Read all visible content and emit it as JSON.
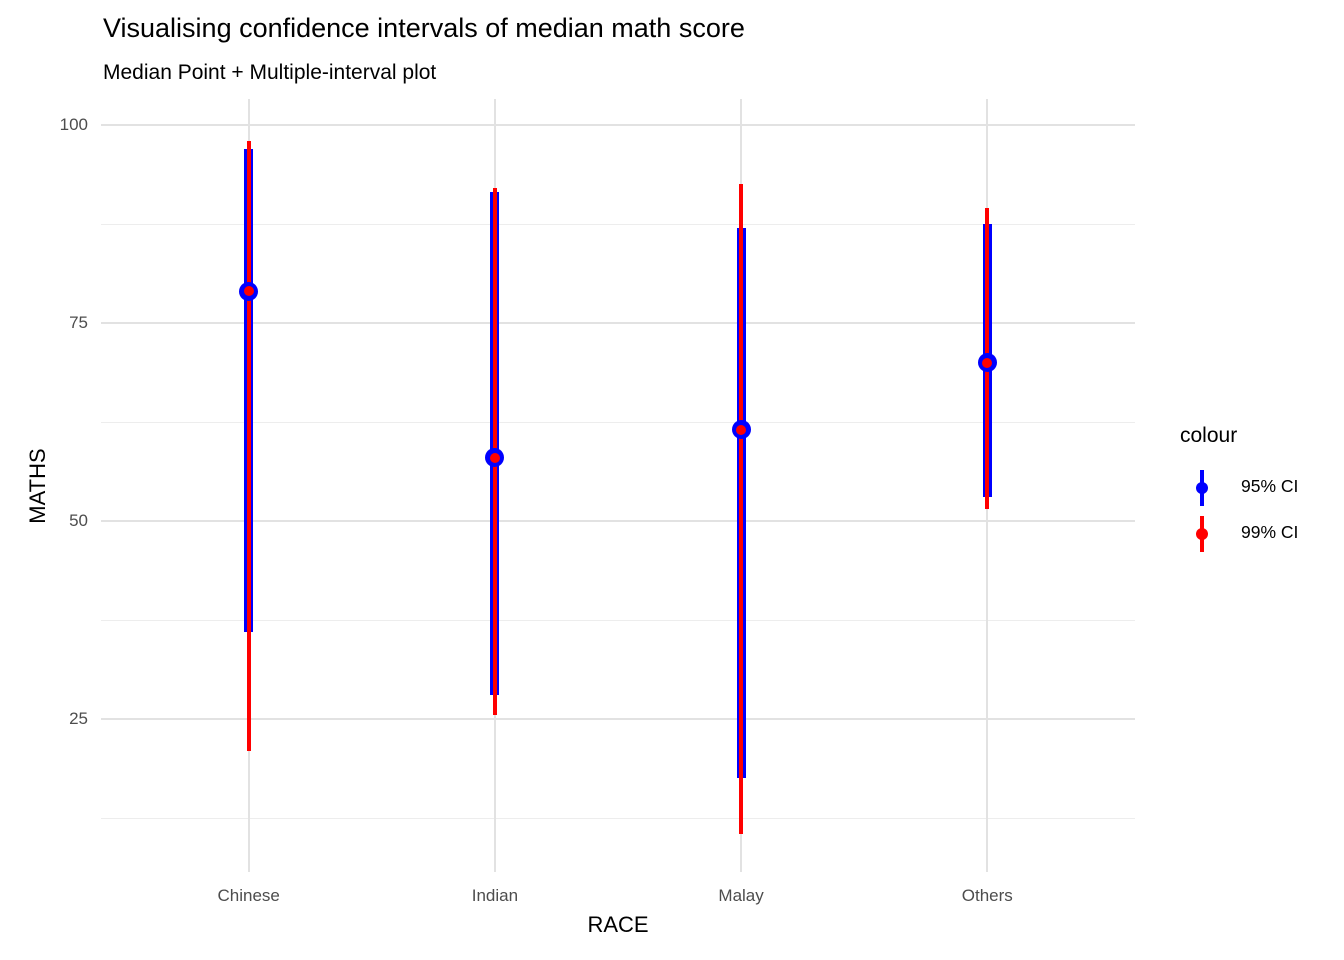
{
  "header": {
    "title": "Visualising confidence intervals of median math score",
    "subtitle": "Median Point + Multiple-interval plot"
  },
  "axes": {
    "x": {
      "title": "RACE",
      "ticks": [
        "Chinese",
        "Indian",
        "Malay",
        "Others"
      ]
    },
    "y": {
      "title": "MATHS",
      "ticks": [
        100,
        75,
        50,
        25
      ]
    }
  },
  "legend": {
    "title": "colour",
    "entries": [
      {
        "label": "95% CI",
        "color": "#0000FF"
      },
      {
        "label": "99% CI",
        "color": "#FF0000"
      }
    ]
  },
  "colors": {
    "ci95_blue": "#0000FF",
    "ci99_red": "#FF0000",
    "grid_major": "#E2E2E2",
    "grid_minor": "#EDEDED",
    "axis_text": "#4D4D4D",
    "background": "#FFFFFF"
  },
  "chart_data": {
    "type": "pointrange",
    "title": "Visualising confidence intervals of median math score",
    "subtitle": "Median Point + Multiple-interval plot",
    "xlabel": "RACE",
    "ylabel": "MATHS",
    "categories": [
      "Chinese",
      "Indian",
      "Malay",
      "Others"
    ],
    "y_major_ticks": [
      100,
      75,
      50,
      25
    ],
    "y_minor_gridlines": [
      87.5,
      62.5,
      37.5,
      12.5
    ],
    "ylim": [
      5.5,
      103.5
    ],
    "grid": true,
    "legend_position": "right",
    "series": [
      {
        "name": "95% CI",
        "color": "#0000FF",
        "groups": [
          {
            "category": "Chinese",
            "median": 79,
            "low": 36,
            "high": 97
          },
          {
            "category": "Indian",
            "median": 58,
            "low": 28,
            "high": 91.5
          },
          {
            "category": "Malay",
            "median": 61.5,
            "low": 17.5,
            "high": 87
          },
          {
            "category": "Others",
            "median": 70,
            "low": 53,
            "high": 87.5
          }
        ]
      },
      {
        "name": "99% CI",
        "color": "#FF0000",
        "groups": [
          {
            "category": "Chinese",
            "median": 79,
            "low": 21,
            "high": 98
          },
          {
            "category": "Indian",
            "median": 58,
            "low": 25.5,
            "high": 92
          },
          {
            "category": "Malay",
            "median": 61.5,
            "low": 10.5,
            "high": 92.5
          },
          {
            "category": "Others",
            "median": 70,
            "low": 51.5,
            "high": 89.5
          }
        ]
      }
    ]
  }
}
